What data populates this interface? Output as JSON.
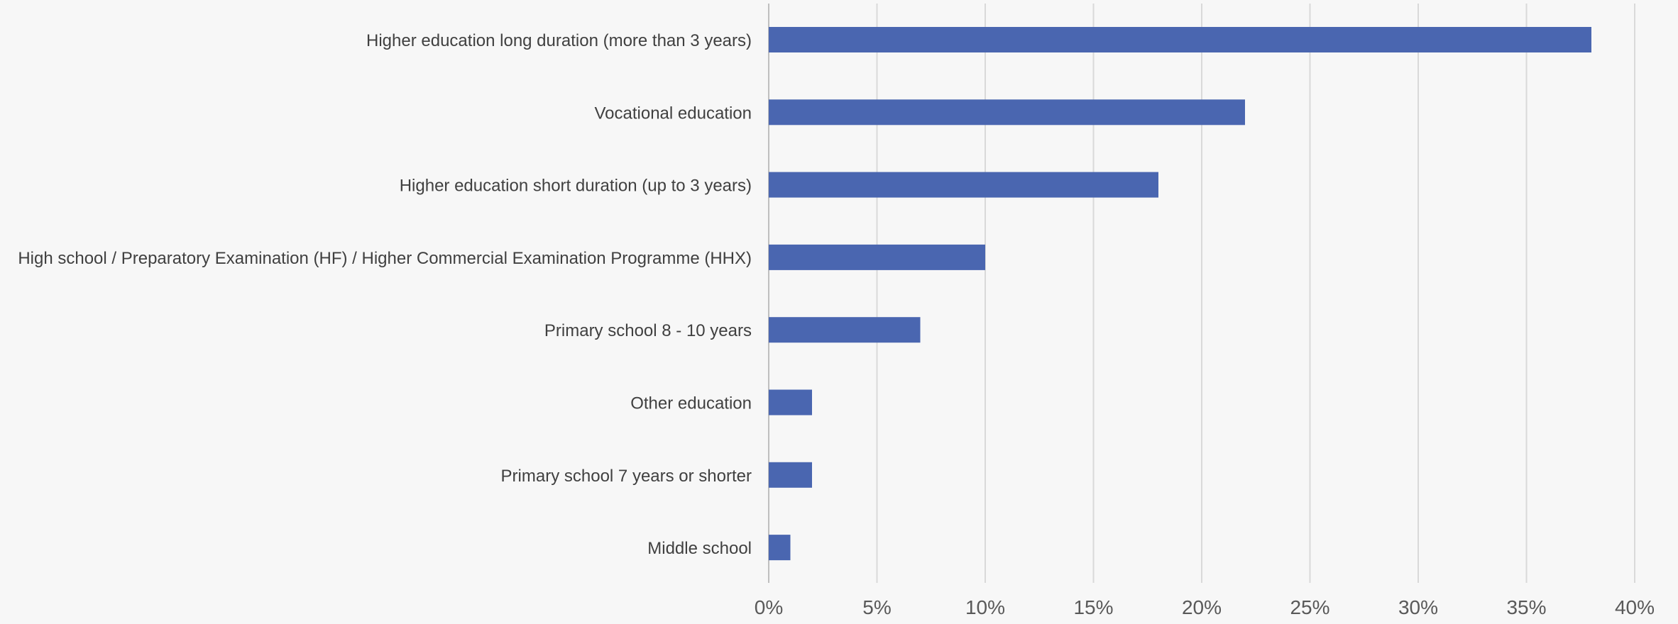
{
  "chart_data": {
    "type": "bar",
    "orientation": "horizontal",
    "categories": [
      "Higher education long duration (more than 3 years)",
      "Vocational education",
      "Higher education short duration (up to 3 years)",
      "High school / Preparatory Examination (HF) / Higher Commercial Examination Programme (HHX)",
      "Primary school 8 - 10 years",
      "Other education",
      "Primary school 7 years or shorter",
      "Middle school"
    ],
    "values": [
      38,
      22,
      18,
      10,
      7,
      2,
      2,
      1
    ],
    "title": "",
    "xlabel": "",
    "ylabel": "",
    "xlim": [
      0,
      40
    ],
    "xticks": [
      0,
      5,
      10,
      15,
      20,
      25,
      30,
      35,
      40
    ],
    "tick_labels": [
      "0%",
      "5%",
      "10%",
      "15%",
      "20%",
      "25%",
      "30%",
      "35%",
      "40%"
    ],
    "grid": "vertical",
    "legend": "none",
    "colors": {
      "bar": "#4a66b0",
      "background": "#f7f7f7",
      "grid": "#d9d9d9",
      "text": "#404040"
    }
  }
}
